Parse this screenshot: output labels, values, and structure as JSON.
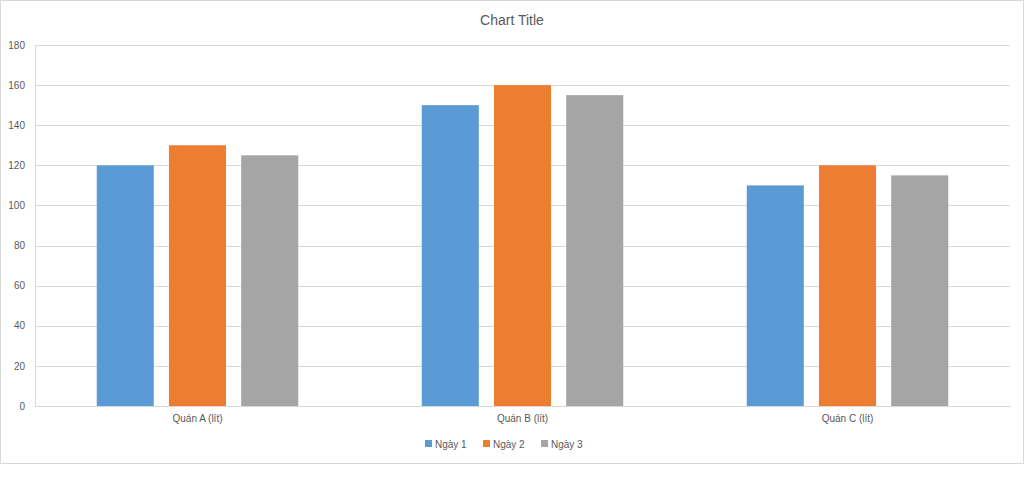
{
  "chart_data": {
    "type": "bar",
    "title": "Chart Title",
    "categories": [
      "Quán A (lít)",
      "Quán B (lít)",
      "Quán C (lít)"
    ],
    "series": [
      {
        "name": "Ngày 1",
        "color": "#5b9bd5",
        "values": [
          120,
          150,
          110
        ]
      },
      {
        "name": "Ngày 2",
        "color": "#ed7d31",
        "values": [
          130,
          160,
          120
        ]
      },
      {
        "name": "Ngày 3",
        "color": "#a5a5a5",
        "values": [
          125,
          155,
          115
        ]
      }
    ],
    "ylim": [
      0,
      180
    ],
    "yticks": [
      0,
      20,
      40,
      60,
      80,
      100,
      120,
      140,
      160,
      180
    ],
    "grid": true,
    "legend": "bottom"
  }
}
